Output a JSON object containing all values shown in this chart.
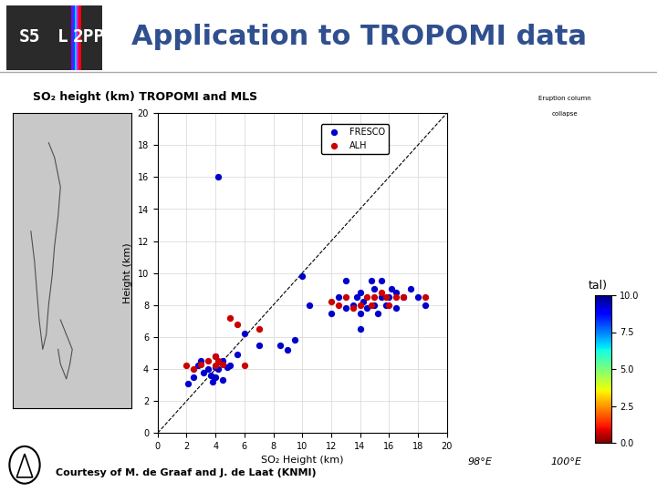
{
  "title": "Application to TROPOMI data",
  "title_color": "#2F4F8F",
  "subtitle_so2": "SO₂ height (km) TROPOMI and MLS",
  "courtesy": "Courtesy of M. de Graaf and J. de Laat (KNMI)",
  "scatter_xlabel": "SO₂ Height (km)",
  "scatter_ylabel": "Height (km)",
  "scatter_xlim": [
    0,
    20
  ],
  "scatter_ylim": [
    0,
    20
  ],
  "scatter_xticks": [
    0,
    2,
    4,
    6,
    8,
    10,
    12,
    14,
    16,
    18,
    20
  ],
  "scatter_yticks": [
    0,
    2,
    4,
    6,
    8,
    10,
    12,
    14,
    16,
    18,
    20
  ],
  "legend_fresco": "FRESCO",
  "legend_alh": "ALH",
  "fresco_color": "#0000CC",
  "alh_color": "#CC0000",
  "slide_bg": "#FFFFFF",
  "fresco_points": [
    [
      2.1,
      3.1
    ],
    [
      2.5,
      3.5
    ],
    [
      2.8,
      4.2
    ],
    [
      3.0,
      4.5
    ],
    [
      3.2,
      3.8
    ],
    [
      3.5,
      4.0
    ],
    [
      3.7,
      3.6
    ],
    [
      3.8,
      3.2
    ],
    [
      4.0,
      4.1
    ],
    [
      4.0,
      3.5
    ],
    [
      4.0,
      4.8
    ],
    [
      4.2,
      4.0
    ],
    [
      4.5,
      3.3
    ],
    [
      4.5,
      4.5
    ],
    [
      4.8,
      4.1
    ],
    [
      5.0,
      4.2
    ],
    [
      5.5,
      4.9
    ],
    [
      6.0,
      6.2
    ],
    [
      7.0,
      5.5
    ],
    [
      8.5,
      5.5
    ],
    [
      9.0,
      5.2
    ],
    [
      9.5,
      5.8
    ],
    [
      10.0,
      9.8
    ],
    [
      10.5,
      8.0
    ],
    [
      12.0,
      7.5
    ],
    [
      12.5,
      8.5
    ],
    [
      13.0,
      7.8
    ],
    [
      13.5,
      8.0
    ],
    [
      13.8,
      8.5
    ],
    [
      14.0,
      7.5
    ],
    [
      14.0,
      8.8
    ],
    [
      14.2,
      8.2
    ],
    [
      14.5,
      7.8
    ],
    [
      14.8,
      9.5
    ],
    [
      15.0,
      8.0
    ],
    [
      15.0,
      9.0
    ],
    [
      15.2,
      7.5
    ],
    [
      15.5,
      8.5
    ],
    [
      15.5,
      9.5
    ],
    [
      15.8,
      8.0
    ],
    [
      16.0,
      8.5
    ],
    [
      16.2,
      9.0
    ],
    [
      16.5,
      8.8
    ],
    [
      16.5,
      7.8
    ],
    [
      17.0,
      8.5
    ],
    [
      17.5,
      9.0
    ],
    [
      18.0,
      8.5
    ],
    [
      18.5,
      8.0
    ],
    [
      4.2,
      16.0
    ],
    [
      13.0,
      9.5
    ],
    [
      14.0,
      6.5
    ]
  ],
  "alh_points": [
    [
      2.0,
      4.2
    ],
    [
      2.5,
      4.0
    ],
    [
      3.0,
      4.3
    ],
    [
      3.5,
      4.5
    ],
    [
      4.0,
      4.2
    ],
    [
      4.0,
      4.8
    ],
    [
      4.2,
      4.5
    ],
    [
      4.5,
      4.3
    ],
    [
      5.0,
      7.2
    ],
    [
      5.5,
      6.8
    ],
    [
      6.0,
      4.2
    ],
    [
      7.0,
      6.5
    ],
    [
      12.0,
      8.2
    ],
    [
      12.5,
      8.0
    ],
    [
      13.0,
      8.5
    ],
    [
      13.5,
      7.8
    ],
    [
      14.0,
      8.0
    ],
    [
      14.5,
      8.5
    ],
    [
      14.8,
      8.0
    ],
    [
      15.0,
      8.5
    ],
    [
      15.5,
      8.8
    ],
    [
      15.8,
      8.5
    ],
    [
      16.0,
      8.0
    ],
    [
      16.5,
      8.5
    ],
    [
      17.0,
      8.5
    ],
    [
      18.5,
      8.5
    ]
  ],
  "stripe_colors": [
    "#8800FF",
    "#0044FF",
    "#00CCFF",
    "#FF00FF",
    "#FF0000"
  ],
  "header_bg": "#F0F0F0",
  "logo_bg": "#2A2A2A"
}
